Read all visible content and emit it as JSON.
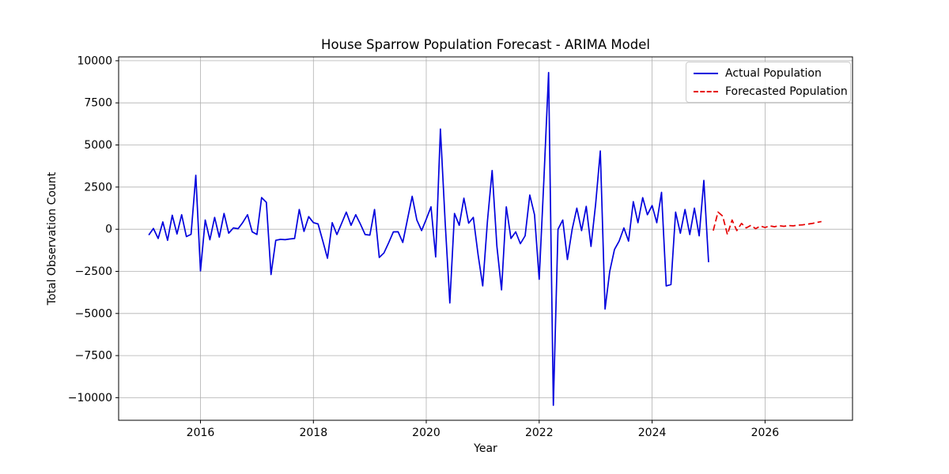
{
  "chart_data": {
    "type": "line",
    "title": "House Sparrow Population Forecast - ARIMA Model",
    "xlabel": "Year",
    "ylabel": "Total Observation Count",
    "xlim": [
      2014.55,
      2027.55
    ],
    "ylim": [
      -11340,
      10230
    ],
    "x_ticks": [
      2016,
      2018,
      2020,
      2022,
      2024,
      2026
    ],
    "y_ticks": [
      -10000,
      -7500,
      -5000,
      -2500,
      0,
      2500,
      5000,
      7500,
      10000
    ],
    "grid": true,
    "legend_position": "upper right",
    "series": [
      {
        "name": "Actual Population",
        "color": "#0000dd",
        "style": "solid",
        "start_year": 2015,
        "start_month": 2,
        "values": [
          -343,
          47,
          -549,
          436,
          -657,
          830,
          -281,
          860,
          -436,
          -300,
          3203,
          -2472,
          549,
          -624,
          703,
          -469,
          938,
          -234,
          80,
          30,
          400,
          860,
          -155,
          -310,
          1880,
          1595,
          -2690,
          -657,
          -600,
          -620,
          -580,
          -550,
          1172,
          -127,
          750,
          390,
          314,
          -700,
          -1721,
          389,
          -314,
          350,
          1017,
          234,
          860,
          300,
          -314,
          -350,
          1172,
          -1674,
          -1407,
          -800,
          -155,
          -150,
          -783,
          600,
          1955,
          549,
          -80,
          600,
          1329,
          -1642,
          5950,
          500,
          -4376,
          938,
          234,
          1843,
          361,
          703,
          -1500,
          -3362,
          500,
          3485,
          -1000,
          -3597,
          1329,
          -549,
          -155,
          -858,
          -389,
          2031,
          860,
          -2969,
          3000,
          9300,
          -10450,
          0,
          549,
          -1796,
          0,
          1252,
          -80,
          1360,
          -1018,
          1500,
          4643,
          -4737,
          -2500,
          -1200,
          -703,
          80,
          -703,
          1641,
          389,
          1876,
          860,
          1407,
          389,
          2190,
          -3362,
          -3283,
          1017,
          -234,
          1172,
          -314,
          1252,
          -389,
          2894,
          -1955
        ]
      },
      {
        "name": "Forecasted Population",
        "color": "#e60000",
        "style": "dashed",
        "start_year": 2025,
        "start_month": 2,
        "values": [
          -80,
          1020,
          780,
          -314,
          549,
          -80,
          343,
          80,
          234,
          33,
          190,
          100,
          200,
          150,
          210,
          170,
          220,
          200,
          240,
          260,
          300,
          340,
          400,
          460
        ]
      }
    ]
  },
  "colors": {
    "actual_line": "#0000dd",
    "forecast_line": "#e60000",
    "gridline": "#b0b0b0",
    "axis_spine": "#000000",
    "legend_border": "#cccccc",
    "background": "#ffffff"
  }
}
